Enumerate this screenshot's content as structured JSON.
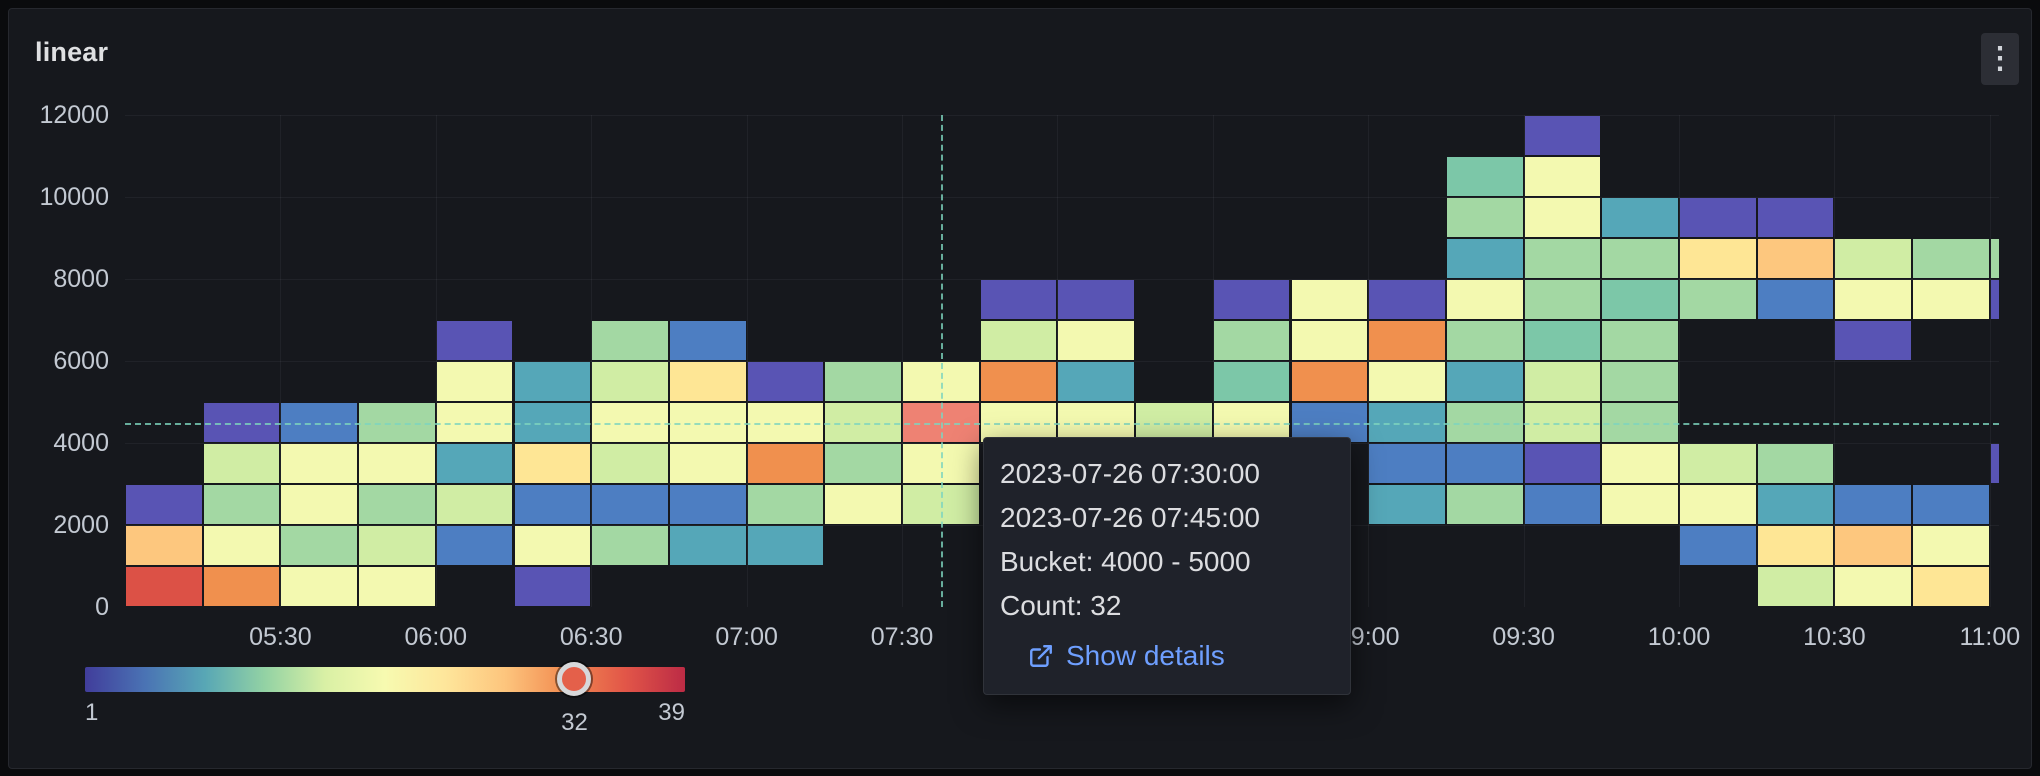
{
  "panel": {
    "title": "linear",
    "menu_icon": "kebab-vertical-dots"
  },
  "tooltip": {
    "time_from": "2023-07-26 07:30:00",
    "time_to": "2023-07-26 07:45:00",
    "bucket": "Bucket: 4000 - 5000",
    "count": "Count: 32",
    "link_label": "Show details",
    "link_color": "#6e9fff"
  },
  "chart_data": {
    "type": "heatmap",
    "title": "linear",
    "x_start": "05:00",
    "x_end": "11:00",
    "x_interval_minutes": 15,
    "x_ticks": [
      "05:30",
      "06:00",
      "06:30",
      "07:00",
      "07:30",
      "08:00",
      "08:30",
      "09:00",
      "09:30",
      "10:00",
      "10:30",
      "11:00"
    ],
    "y_ticks": [
      0,
      2000,
      4000,
      6000,
      8000,
      10000,
      12000
    ],
    "y_max": 12000,
    "y_bucket_size": 1000,
    "grid": true,
    "legend_position": "bottom-left",
    "crosshair": {
      "col": 10.5,
      "value": 4500
    },
    "highlighted_cell": {
      "time_from": "2023-07-26 07:30:00",
      "time_to": "2023-07-26 07:45:00",
      "bucket_min": 4000,
      "bucket_max": 5000,
      "count": 32
    },
    "color_scale": {
      "min": 1,
      "max": 39,
      "marker_value": 32,
      "min_label": "1",
      "max_label": "39",
      "marker_label": "32",
      "gradient": [
        "#413d9b",
        "#4a73b4",
        "#58a7b5",
        "#93d2a4",
        "#d9f0a5",
        "#f7fab0",
        "#fee69b",
        "#fdc57d",
        "#f28c51",
        "#e25648",
        "#bc2b45"
      ]
    },
    "palette": {
      "P": "#5954b4",
      "B": "#4d7ec2",
      "T": "#55a7b8",
      "TG": "#7cc7a8",
      "G": "#a3d8a3",
      "PG": "#d0eda4",
      "PY": "#f3f9b0",
      "Y": "#fee695",
      "PE": "#fdc77e",
      "O": "#f0904e",
      "R": "#dc5146",
      "HL": "#ee8273"
    },
    "cells": [
      [
        0,
        0,
        "R"
      ],
      [
        0,
        1,
        "PE"
      ],
      [
        0,
        2,
        "P"
      ],
      [
        1,
        0,
        "O"
      ],
      [
        1,
        1,
        "PY"
      ],
      [
        1,
        2,
        "G"
      ],
      [
        1,
        3,
        "PG"
      ],
      [
        1,
        4,
        "P"
      ],
      [
        2,
        0,
        "PY"
      ],
      [
        2,
        1,
        "G"
      ],
      [
        2,
        2,
        "PY"
      ],
      [
        2,
        3,
        "PY"
      ],
      [
        2,
        4,
        "B"
      ],
      [
        3,
        0,
        "PY"
      ],
      [
        3,
        1,
        "PG"
      ],
      [
        3,
        2,
        "G"
      ],
      [
        3,
        3,
        "PY"
      ],
      [
        3,
        4,
        "G"
      ],
      [
        4,
        1,
        "B"
      ],
      [
        4,
        2,
        "PG"
      ],
      [
        4,
        3,
        "T"
      ],
      [
        4,
        4,
        "PY"
      ],
      [
        4,
        5,
        "PY"
      ],
      [
        4,
        6,
        "P"
      ],
      [
        5,
        0,
        "P"
      ],
      [
        5,
        1,
        "PY"
      ],
      [
        5,
        2,
        "B"
      ],
      [
        5,
        3,
        "Y"
      ],
      [
        5,
        4,
        "T"
      ],
      [
        5,
        5,
        "T"
      ],
      [
        6,
        1,
        "G"
      ],
      [
        6,
        2,
        "B"
      ],
      [
        6,
        3,
        "PG"
      ],
      [
        6,
        4,
        "PY"
      ],
      [
        6,
        5,
        "PG"
      ],
      [
        6,
        6,
        "G"
      ],
      [
        7,
        1,
        "T"
      ],
      [
        7,
        2,
        "B"
      ],
      [
        7,
        3,
        "PY"
      ],
      [
        7,
        4,
        "PY"
      ],
      [
        7,
        5,
        "Y"
      ],
      [
        7,
        6,
        "B"
      ],
      [
        8,
        1,
        "T"
      ],
      [
        8,
        2,
        "G"
      ],
      [
        8,
        3,
        "O"
      ],
      [
        8,
        4,
        "PY"
      ],
      [
        8,
        5,
        "P"
      ],
      [
        9,
        2,
        "PY"
      ],
      [
        9,
        3,
        "G"
      ],
      [
        9,
        4,
        "PG"
      ],
      [
        9,
        5,
        "G"
      ],
      [
        10,
        2,
        "PG"
      ],
      [
        10,
        3,
        "PY"
      ],
      [
        10,
        4,
        "HL"
      ],
      [
        10,
        5,
        "PY"
      ],
      [
        11,
        4,
        "PY"
      ],
      [
        11,
        5,
        "O"
      ],
      [
        11,
        6,
        "PG"
      ],
      [
        11,
        7,
        "P"
      ],
      [
        12,
        4,
        "PY"
      ],
      [
        12,
        5,
        "T"
      ],
      [
        12,
        6,
        "PY"
      ],
      [
        12,
        7,
        "P"
      ],
      [
        13,
        4,
        "PG"
      ],
      [
        14,
        4,
        "PY"
      ],
      [
        14,
        5,
        "TG"
      ],
      [
        14,
        6,
        "G"
      ],
      [
        14,
        7,
        "P"
      ],
      [
        15,
        4,
        "B"
      ],
      [
        15,
        5,
        "O"
      ],
      [
        15,
        6,
        "PY"
      ],
      [
        15,
        7,
        "PY"
      ],
      [
        16,
        2,
        "T"
      ],
      [
        16,
        3,
        "B"
      ],
      [
        16,
        4,
        "T"
      ],
      [
        16,
        5,
        "PY"
      ],
      [
        16,
        6,
        "O"
      ],
      [
        16,
        7,
        "P"
      ],
      [
        17,
        2,
        "G"
      ],
      [
        17,
        3,
        "B"
      ],
      [
        17,
        4,
        "G"
      ],
      [
        17,
        5,
        "T"
      ],
      [
        17,
        6,
        "G"
      ],
      [
        17,
        7,
        "PY"
      ],
      [
        17,
        8,
        "T"
      ],
      [
        17,
        9,
        "G"
      ],
      [
        17,
        10,
        "TG"
      ],
      [
        18,
        2,
        "B"
      ],
      [
        18,
        3,
        "P"
      ],
      [
        18,
        4,
        "PG"
      ],
      [
        18,
        5,
        "PG"
      ],
      [
        18,
        6,
        "TG"
      ],
      [
        18,
        7,
        "G"
      ],
      [
        18,
        8,
        "G"
      ],
      [
        18,
        9,
        "PY"
      ],
      [
        18,
        10,
        "PY"
      ],
      [
        18,
        11,
        "P"
      ],
      [
        19,
        2,
        "PY"
      ],
      [
        19,
        3,
        "PY"
      ],
      [
        19,
        4,
        "G"
      ],
      [
        19,
        5,
        "G"
      ],
      [
        19,
        6,
        "G"
      ],
      [
        19,
        7,
        "TG"
      ],
      [
        19,
        8,
        "G"
      ],
      [
        19,
        9,
        "T"
      ],
      [
        20,
        1,
        "B"
      ],
      [
        20,
        2,
        "PY"
      ],
      [
        20,
        3,
        "PG"
      ],
      [
        20,
        7,
        "G"
      ],
      [
        20,
        8,
        "Y"
      ],
      [
        20,
        9,
        "P"
      ],
      [
        21,
        0,
        "PG"
      ],
      [
        21,
        1,
        "Y"
      ],
      [
        21,
        2,
        "T"
      ],
      [
        21,
        3,
        "G"
      ],
      [
        21,
        7,
        "B"
      ],
      [
        21,
        8,
        "PE"
      ],
      [
        21,
        9,
        "P"
      ],
      [
        22,
        0,
        "PY"
      ],
      [
        22,
        1,
        "PE"
      ],
      [
        22,
        2,
        "B"
      ],
      [
        22,
        6,
        "P"
      ],
      [
        22,
        7,
        "PY"
      ],
      [
        22,
        8,
        "PG"
      ],
      [
        23,
        0,
        "Y"
      ],
      [
        23,
        1,
        "PY"
      ],
      [
        23,
        2,
        "B"
      ],
      [
        23,
        7,
        "PY"
      ],
      [
        23,
        8,
        "G"
      ],
      [
        24,
        3,
        "P"
      ],
      [
        24,
        7,
        "P"
      ],
      [
        24,
        8,
        "G"
      ]
    ]
  }
}
